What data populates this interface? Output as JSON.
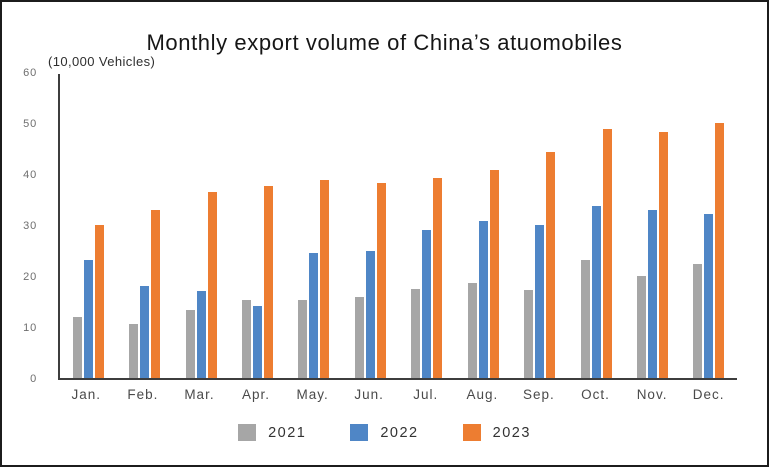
{
  "page": {
    "title": "Monthly export volume of China’s atuomobiles",
    "unit_label": "(10,000 Vehicles)"
  },
  "chart_data": {
    "type": "bar",
    "title": "Monthly export volume of China’s atuomobiles",
    "subtitle_unit": "(10,000 Vehicles)",
    "categories": [
      "Jan.",
      "Feb.",
      "Mar.",
      "Apr.",
      "May.",
      "Jun.",
      "Jul.",
      "Aug.",
      "Sep.",
      "Oct.",
      "Nov.",
      "Dec."
    ],
    "series": [
      {
        "name": "2021",
        "color": "#a6a6a6",
        "values": [
          11.9,
          10.5,
          13.3,
          15.2,
          15.2,
          15.8,
          17.4,
          18.7,
          17.3,
          23.1,
          20.0,
          22.3
        ]
      },
      {
        "name": "2022",
        "color": "#4f86c6",
        "values": [
          23.1,
          18.1,
          17.0,
          14.1,
          24.5,
          24.9,
          29.0,
          30.8,
          30.1,
          33.7,
          32.9,
          32.2
        ]
      },
      {
        "name": "2023",
        "color": "#ed7d31",
        "values": [
          30.1,
          33.0,
          36.4,
          37.6,
          38.9,
          38.2,
          39.2,
          40.8,
          44.4,
          48.8,
          48.2,
          50.0
        ]
      }
    ],
    "ylim": [
      0,
      60
    ],
    "yticks": [
      0,
      10,
      20,
      30,
      40,
      50,
      60
    ],
    "xlabel": "",
    "ylabel": "(10,000 Vehicles)",
    "grid": false,
    "legend_position": "bottom",
    "axis_color": "#3d3d3d",
    "frame_border_color": "#1c1c1c",
    "background_color": "#ffffff"
  }
}
